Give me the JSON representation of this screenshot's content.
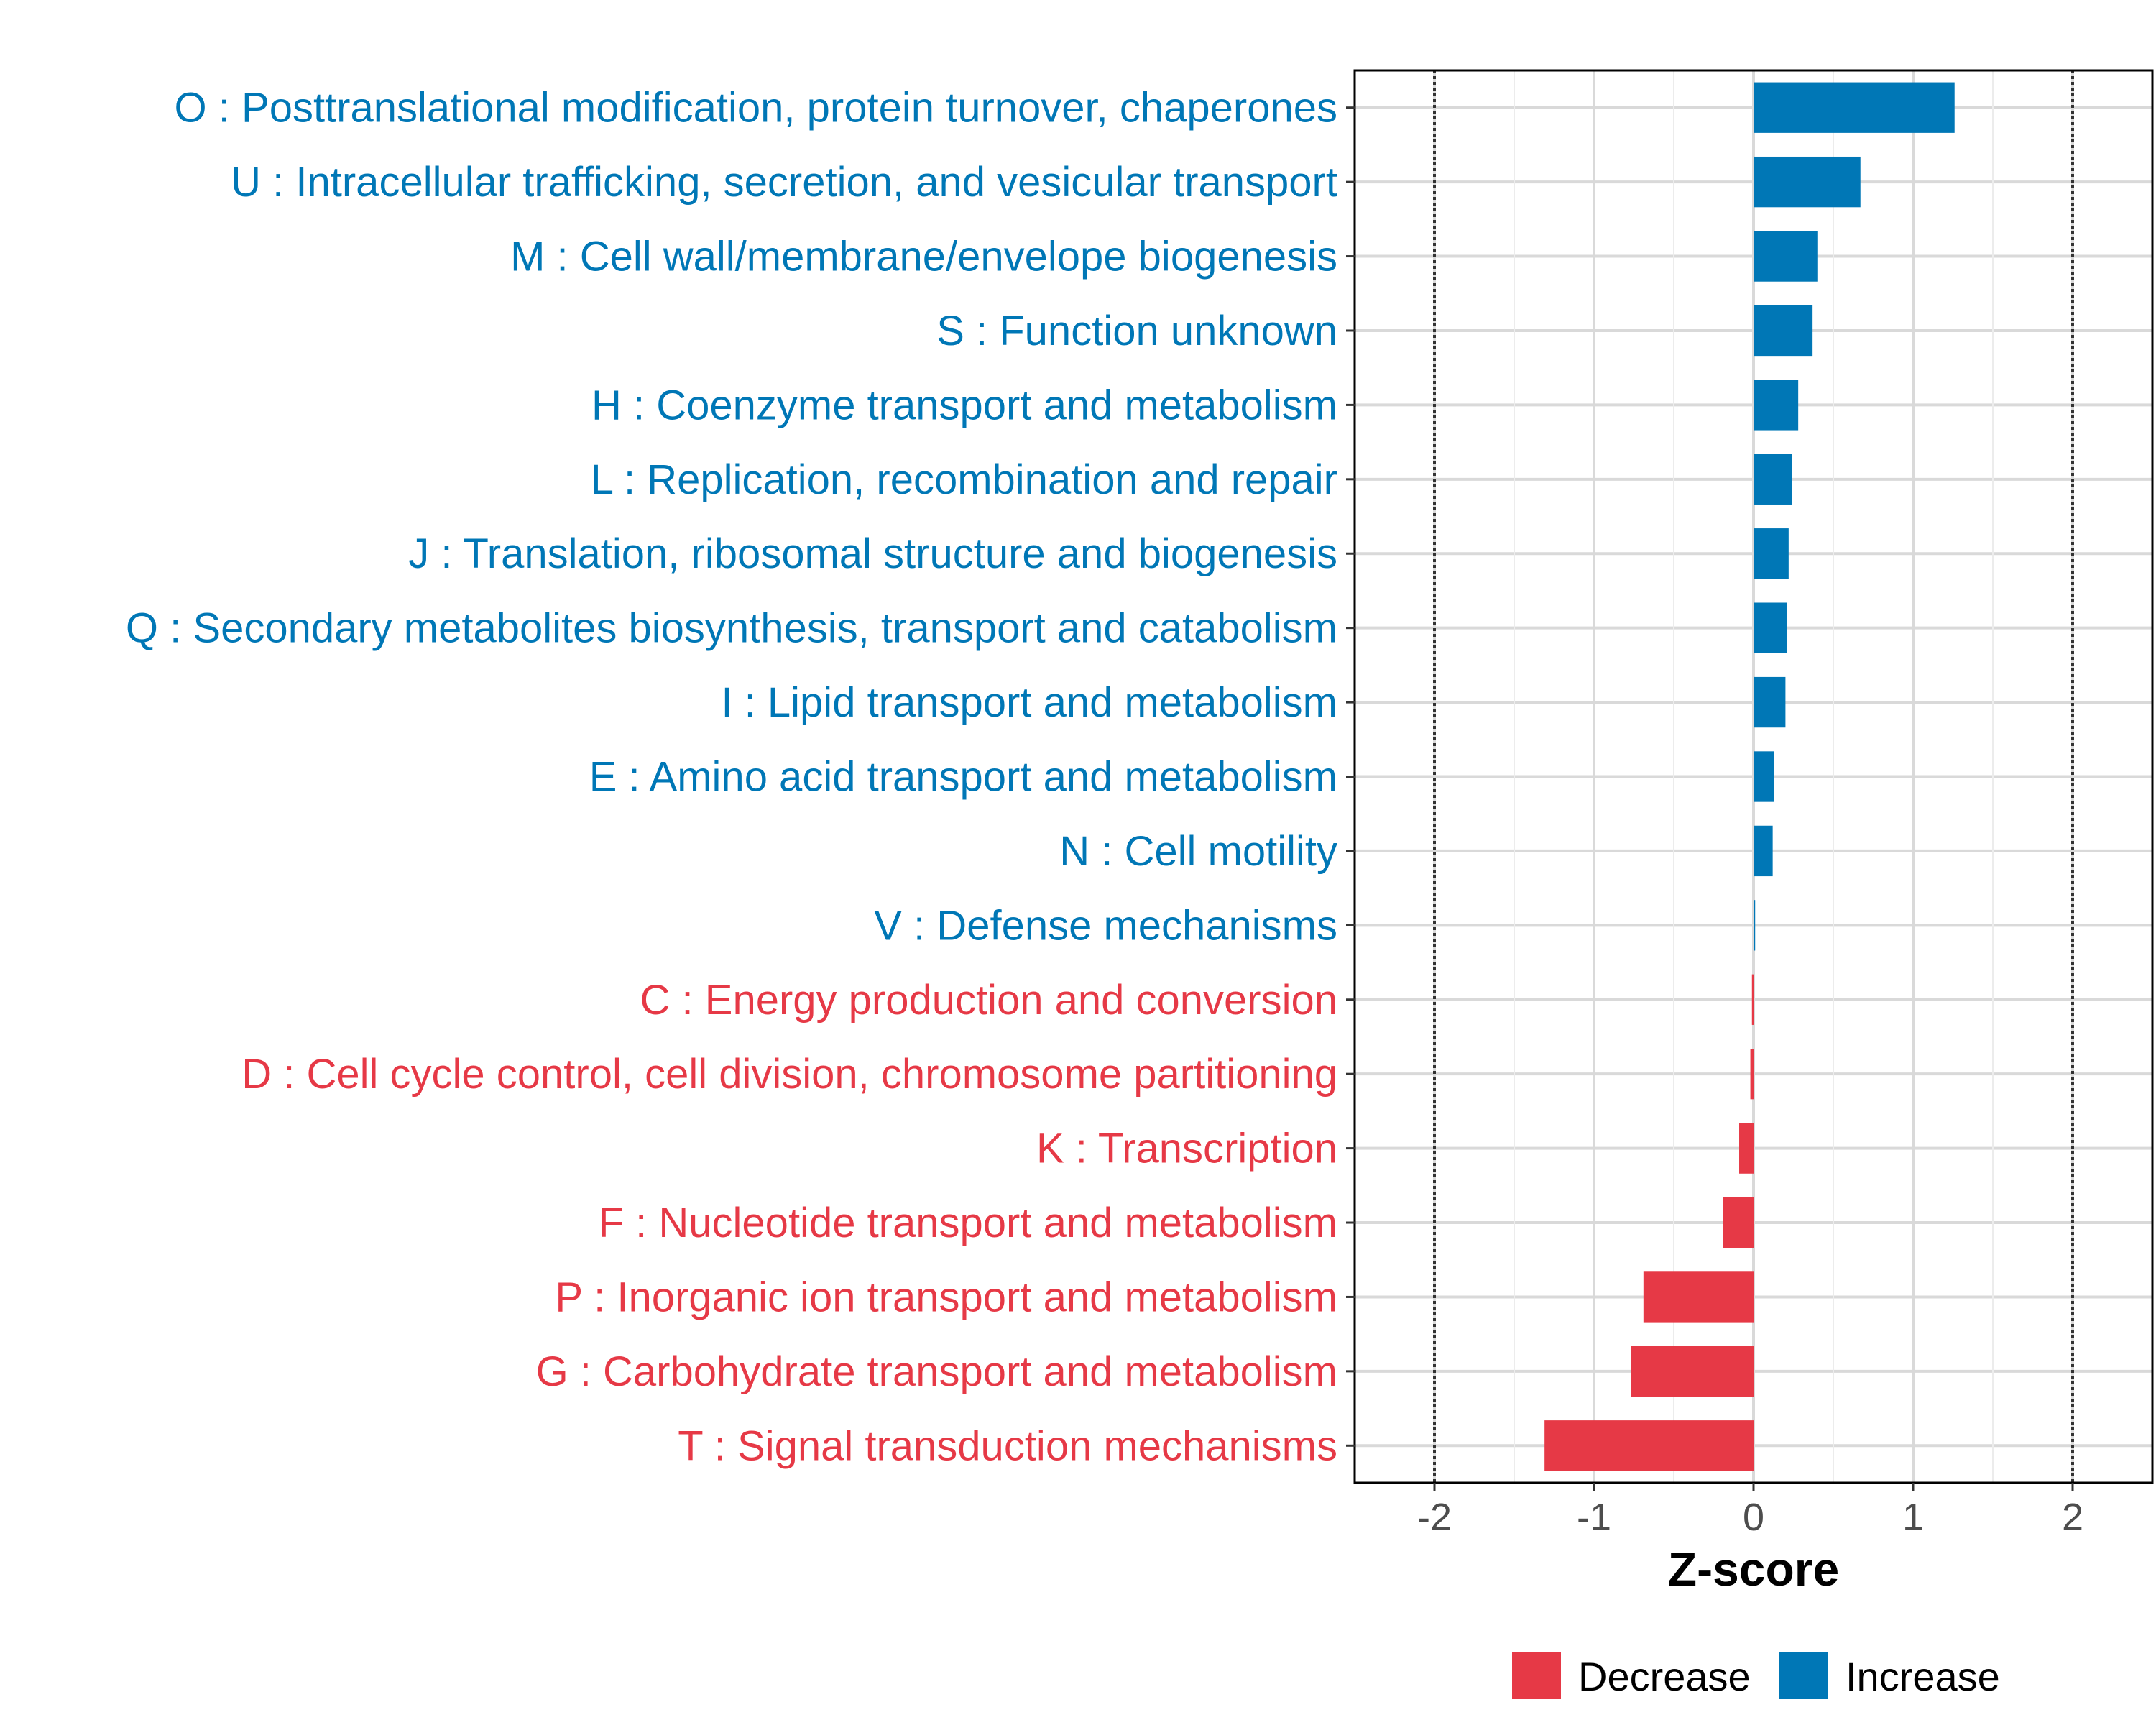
{
  "chart_data": {
    "type": "bar",
    "orientation": "horizontal",
    "title": "",
    "xlabel": "Z-score",
    "ylabel": "",
    "xlim": [
      -2.5,
      2.5
    ],
    "xticks": [
      -2,
      -1,
      0,
      1,
      2
    ],
    "xtick_labels": [
      "-2",
      "-1",
      "0",
      "1",
      "2"
    ],
    "reference_lines": [
      -2,
      2
    ],
    "grid": true,
    "categories": [
      "O : Posttranslational modification, protein turnover, chaperones",
      "U : Intracellular trafficking, secretion, and vesicular transport",
      "M : Cell wall/membrane/envelope biogenesis",
      "S : Function unknown",
      "H : Coenzyme transport and metabolism",
      "L : Replication, recombination and repair",
      "J : Translation, ribosomal structure and biogenesis",
      "Q : Secondary metabolites biosynthesis, transport and catabolism",
      "I : Lipid transport and metabolism",
      "E : Amino acid transport and metabolism",
      "N : Cell motility",
      "V : Defense mechanisms",
      "C : Energy production and conversion",
      "D : Cell cycle control, cell division, chromosome partitioning",
      "K : Transcription",
      "F : Nucleotide transport and metabolism",
      "P : Inorganic ion transport and metabolism",
      "G : Carbohydrate transport and metabolism",
      "T : Signal transduction mechanisms"
    ],
    "values": [
      1.26,
      0.67,
      0.4,
      0.37,
      0.28,
      0.24,
      0.22,
      0.21,
      0.2,
      0.13,
      0.12,
      0.01,
      -0.01,
      -0.02,
      -0.09,
      -0.19,
      -0.69,
      -0.77,
      -1.31
    ],
    "series_colors": {
      "Decrease": "#e63946",
      "Increase": "#0077b6"
    },
    "legend": {
      "position": "bottom",
      "entries": [
        "Decrease",
        "Increase"
      ]
    }
  }
}
